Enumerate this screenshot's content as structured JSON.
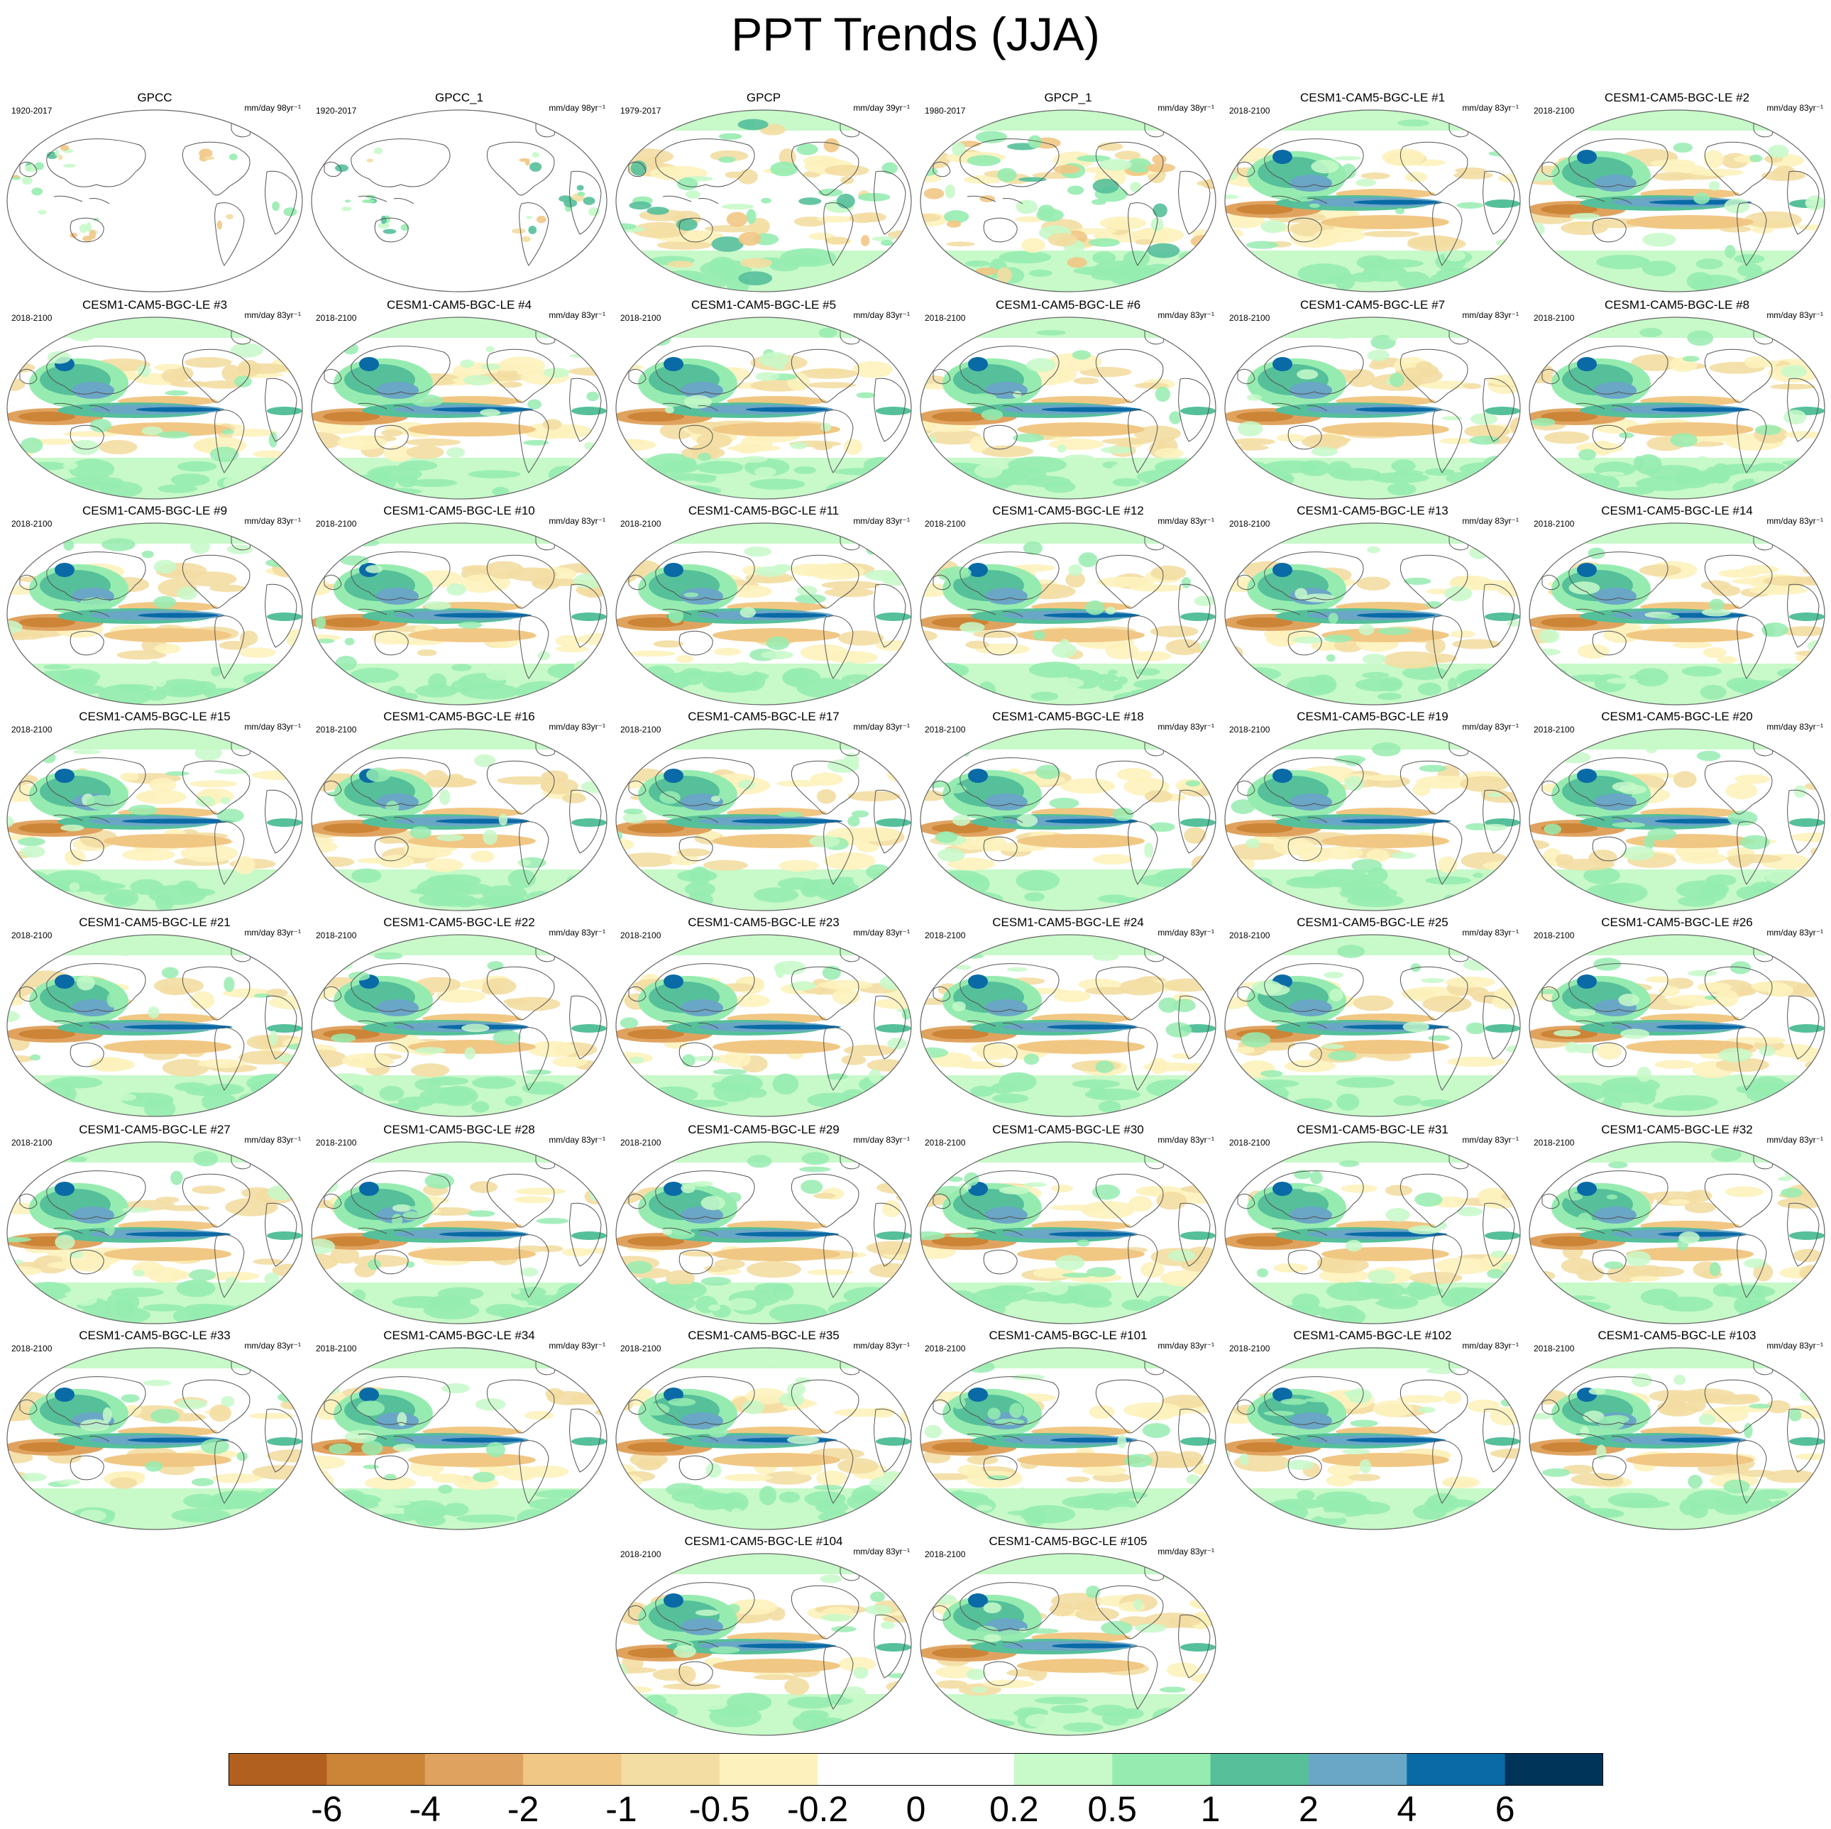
{
  "title": "PPT Trends (JJA)",
  "map": {
    "projection": "Robinson (Pacific-centered)",
    "variable": "precipitation trend",
    "season": "JJA"
  },
  "colorbar": {
    "colors": [
      "#b2601f",
      "#cc8437",
      "#e0a35f",
      "#f1c784",
      "#f3dda2",
      "#fdf2bd",
      "#ffffff",
      "#ffffff",
      "#c7f9c9",
      "#96ecb0",
      "#55c09a",
      "#6aa6c6",
      "#0a6aa6",
      "#013459"
    ],
    "tick_labels": [
      "-6",
      "-4",
      "-2",
      "-1",
      "-0.5",
      "-0.2",
      "0",
      "0.2",
      "0.5",
      "1",
      "2",
      "4",
      "6"
    ]
  },
  "panels": [
    {
      "title": "GPCC",
      "period": "1920-2017",
      "units": "mm/day 98yr⁻¹",
      "kind": "obs-land"
    },
    {
      "title": "GPCC_1",
      "period": "1920-2017",
      "units": "mm/day 98yr⁻¹",
      "kind": "obs-land"
    },
    {
      "title": "GPCP",
      "period": "1979-2017",
      "units": "mm/day 39yr⁻¹",
      "kind": "obs-global"
    },
    {
      "title": "GPCP_1",
      "period": "1980-2017",
      "units": "mm/day 38yr⁻¹",
      "kind": "obs-global"
    },
    {
      "title": "CESM1-CAM5-BGC-LE #1",
      "period": "2018-2100",
      "units": "mm/day 83yr⁻¹",
      "kind": "model"
    },
    {
      "title": "CESM1-CAM5-BGC-LE #2",
      "period": "2018-2100",
      "units": "mm/day 83yr⁻¹",
      "kind": "model"
    },
    {
      "title": "CESM1-CAM5-BGC-LE #3",
      "period": "2018-2100",
      "units": "mm/day 83yr⁻¹",
      "kind": "model"
    },
    {
      "title": "CESM1-CAM5-BGC-LE #4",
      "period": "2018-2100",
      "units": "mm/day 83yr⁻¹",
      "kind": "model"
    },
    {
      "title": "CESM1-CAM5-BGC-LE #5",
      "period": "2018-2100",
      "units": "mm/day 83yr⁻¹",
      "kind": "model"
    },
    {
      "title": "CESM1-CAM5-BGC-LE #6",
      "period": "2018-2100",
      "units": "mm/day 83yr⁻¹",
      "kind": "model"
    },
    {
      "title": "CESM1-CAM5-BGC-LE #7",
      "period": "2018-2100",
      "units": "mm/day 83yr⁻¹",
      "kind": "model"
    },
    {
      "title": "CESM1-CAM5-BGC-LE #8",
      "period": "2018-2100",
      "units": "mm/day 83yr⁻¹",
      "kind": "model"
    },
    {
      "title": "CESM1-CAM5-BGC-LE #9",
      "period": "2018-2100",
      "units": "mm/day 83yr⁻¹",
      "kind": "model"
    },
    {
      "title": "CESM1-CAM5-BGC-LE #10",
      "period": "2018-2100",
      "units": "mm/day 83yr⁻¹",
      "kind": "model"
    },
    {
      "title": "CESM1-CAM5-BGC-LE #11",
      "period": "2018-2100",
      "units": "mm/day 83yr⁻¹",
      "kind": "model"
    },
    {
      "title": "CESM1-CAM5-BGC-LE #12",
      "period": "2018-2100",
      "units": "mm/day 83yr⁻¹",
      "kind": "model"
    },
    {
      "title": "CESM1-CAM5-BGC-LE #13",
      "period": "2018-2100",
      "units": "mm/day 83yr⁻¹",
      "kind": "model"
    },
    {
      "title": "CESM1-CAM5-BGC-LE #14",
      "period": "2018-2100",
      "units": "mm/day 83yr⁻¹",
      "kind": "model"
    },
    {
      "title": "CESM1-CAM5-BGC-LE #15",
      "period": "2018-2100",
      "units": "mm/day 83yr⁻¹",
      "kind": "model"
    },
    {
      "title": "CESM1-CAM5-BGC-LE #16",
      "period": "2018-2100",
      "units": "mm/day 83yr⁻¹",
      "kind": "model"
    },
    {
      "title": "CESM1-CAM5-BGC-LE #17",
      "period": "2018-2100",
      "units": "mm/day 83yr⁻¹",
      "kind": "model"
    },
    {
      "title": "CESM1-CAM5-BGC-LE #18",
      "period": "2018-2100",
      "units": "mm/day 83yr⁻¹",
      "kind": "model"
    },
    {
      "title": "CESM1-CAM5-BGC-LE #19",
      "period": "2018-2100",
      "units": "mm/day 83yr⁻¹",
      "kind": "model"
    },
    {
      "title": "CESM1-CAM5-BGC-LE #20",
      "period": "2018-2100",
      "units": "mm/day 83yr⁻¹",
      "kind": "model"
    },
    {
      "title": "CESM1-CAM5-BGC-LE #21",
      "period": "2018-2100",
      "units": "mm/day 83yr⁻¹",
      "kind": "model"
    },
    {
      "title": "CESM1-CAM5-BGC-LE #22",
      "period": "2018-2100",
      "units": "mm/day 83yr⁻¹",
      "kind": "model"
    },
    {
      "title": "CESM1-CAM5-BGC-LE #23",
      "period": "2018-2100",
      "units": "mm/day 83yr⁻¹",
      "kind": "model"
    },
    {
      "title": "CESM1-CAM5-BGC-LE #24",
      "period": "2018-2100",
      "units": "mm/day 83yr⁻¹",
      "kind": "model"
    },
    {
      "title": "CESM1-CAM5-BGC-LE #25",
      "period": "2018-2100",
      "units": "mm/day 83yr⁻¹",
      "kind": "model"
    },
    {
      "title": "CESM1-CAM5-BGC-LE #26",
      "period": "2018-2100",
      "units": "mm/day 83yr⁻¹",
      "kind": "model"
    },
    {
      "title": "CESM1-CAM5-BGC-LE #27",
      "period": "2018-2100",
      "units": "mm/day 83yr⁻¹",
      "kind": "model"
    },
    {
      "title": "CESM1-CAM5-BGC-LE #28",
      "period": "2018-2100",
      "units": "mm/day 83yr⁻¹",
      "kind": "model"
    },
    {
      "title": "CESM1-CAM5-BGC-LE #29",
      "period": "2018-2100",
      "units": "mm/day 83yr⁻¹",
      "kind": "model"
    },
    {
      "title": "CESM1-CAM5-BGC-LE #30",
      "period": "2018-2100",
      "units": "mm/day 83yr⁻¹",
      "kind": "model"
    },
    {
      "title": "CESM1-CAM5-BGC-LE #31",
      "period": "2018-2100",
      "units": "mm/day 83yr⁻¹",
      "kind": "model"
    },
    {
      "title": "CESM1-CAM5-BGC-LE #32",
      "period": "2018-2100",
      "units": "mm/day 83yr⁻¹",
      "kind": "model"
    },
    {
      "title": "CESM1-CAM5-BGC-LE #33",
      "period": "2018-2100",
      "units": "mm/day 83yr⁻¹",
      "kind": "model"
    },
    {
      "title": "CESM1-CAM5-BGC-LE #34",
      "period": "2018-2100",
      "units": "mm/day 83yr⁻¹",
      "kind": "model"
    },
    {
      "title": "CESM1-CAM5-BGC-LE #35",
      "period": "2018-2100",
      "units": "mm/day 83yr⁻¹",
      "kind": "model"
    },
    {
      "title": "CESM1-CAM5-BGC-LE #101",
      "period": "2018-2100",
      "units": "mm/day 83yr⁻¹",
      "kind": "model"
    },
    {
      "title": "CESM1-CAM5-BGC-LE #102",
      "period": "2018-2100",
      "units": "mm/day 83yr⁻¹",
      "kind": "model"
    },
    {
      "title": "CESM1-CAM5-BGC-LE #103",
      "period": "2018-2100",
      "units": "mm/day 83yr⁻¹",
      "kind": "model"
    },
    {
      "title": "CESM1-CAM5-BGC-LE #104",
      "period": "2018-2100",
      "units": "mm/day 83yr⁻¹",
      "kind": "model"
    },
    {
      "title": "CESM1-CAM5-BGC-LE #105",
      "period": "2018-2100",
      "units": "mm/day 83yr⁻¹",
      "kind": "model"
    }
  ]
}
